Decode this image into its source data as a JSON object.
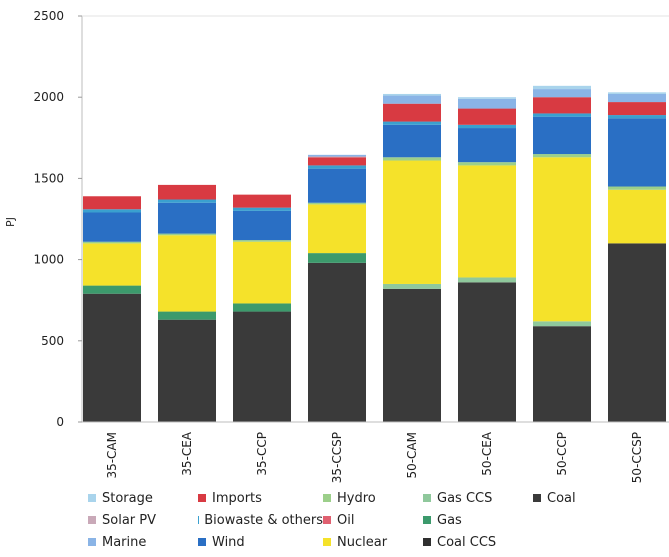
{
  "chart_data": {
    "type": "bar",
    "stacked": true,
    "categories": [
      "35-CAM",
      "35-CEA",
      "35-CCP",
      "35-CCSP",
      "50-CAM",
      "50-CEA",
      "50-CCP",
      "50-CCSP"
    ],
    "ylabel": "PJ",
    "ylim": [
      0,
      2500
    ],
    "yticks": [
      0,
      500,
      1000,
      1500,
      2000,
      2500
    ],
    "grid": false,
    "legend_position": "bottom",
    "series": [
      {
        "name": "Coal",
        "color": "#3a3a3a",
        "values": [
          790,
          630,
          680,
          980,
          820,
          860,
          590,
          1100
        ]
      },
      {
        "name": "Gas",
        "color": "#3c9a6c",
        "values": [
          50,
          50,
          50,
          60,
          0,
          0,
          0,
          0
        ]
      },
      {
        "name": "Gas CCS",
        "color": "#8fc89c",
        "values": [
          0,
          0,
          0,
          0,
          30,
          30,
          30,
          0
        ]
      },
      {
        "name": "Nuclear",
        "color": "#f5e22a",
        "values": [
          260,
          470,
          380,
          300,
          760,
          690,
          1010,
          330
        ]
      },
      {
        "name": "Hydro",
        "color": "#9ccf8a",
        "values": [
          10,
          10,
          10,
          10,
          20,
          20,
          20,
          20
        ]
      },
      {
        "name": "Wind",
        "color": "#2a6fc4",
        "values": [
          180,
          190,
          180,
          210,
          200,
          210,
          230,
          420
        ]
      },
      {
        "name": "Biowaste & others",
        "color": "#3aa0cf",
        "values": [
          20,
          20,
          20,
          20,
          20,
          20,
          20,
          20
        ]
      },
      {
        "name": "Oil",
        "color": "#e06070",
        "values": [
          0,
          0,
          0,
          0,
          0,
          0,
          0,
          0
        ]
      },
      {
        "name": "Imports",
        "color": "#d83a42",
        "values": [
          80,
          90,
          80,
          50,
          110,
          100,
          100,
          80
        ]
      },
      {
        "name": "Solar PV",
        "color": "#c9a9b8",
        "values": [
          0,
          0,
          0,
          5,
          0,
          0,
          0,
          0
        ]
      },
      {
        "name": "Marine",
        "color": "#8ab4e6",
        "values": [
          0,
          0,
          0,
          10,
          50,
          60,
          50,
          50
        ]
      },
      {
        "name": "Storage",
        "color": "#a9d4ec",
        "values": [
          0,
          0,
          0,
          0,
          10,
          10,
          20,
          10
        ]
      }
    ]
  },
  "legend": [
    {
      "label": "Storage",
      "color": "#a9d4ec"
    },
    {
      "label": "Imports",
      "color": "#d83a42"
    },
    {
      "label": "Hydro",
      "color": "#9ccf8a"
    },
    {
      "label": "Gas CCS",
      "color": "#8fc89c"
    },
    {
      "label": "Coal",
      "color": "#3a3a3a"
    },
    {
      "label": "Solar PV",
      "color": "#c9a9b8"
    },
    {
      "label": "Biowaste & others",
      "color": "#3aa0cf"
    },
    {
      "label": "Oil",
      "color": "#e06070"
    },
    {
      "label": "Gas",
      "color": "#3c9a6c"
    },
    {
      "label": "",
      "color": ""
    },
    {
      "label": "Marine",
      "color": "#8ab4e6"
    },
    {
      "label": "Wind",
      "color": "#2a6fc4"
    },
    {
      "label": "Nuclear",
      "color": "#f5e22a"
    },
    {
      "label": "Coal CCS",
      "color": "#2f2f2f"
    }
  ]
}
